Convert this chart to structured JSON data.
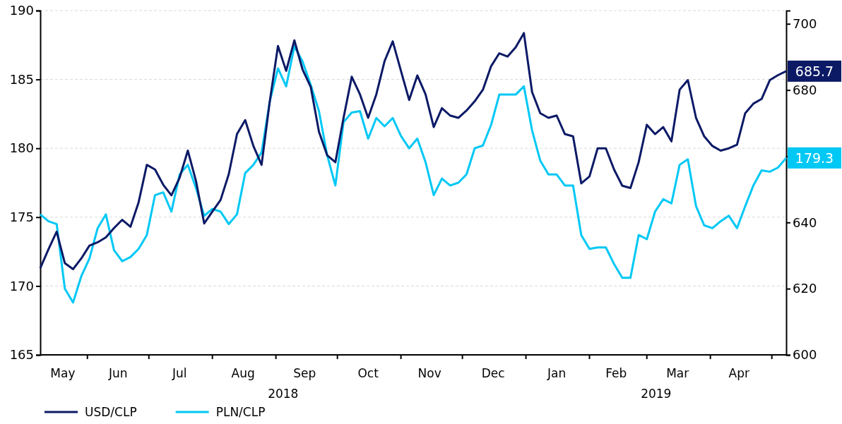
{
  "chart_data": {
    "type": "line",
    "x": [
      "2018-05-09",
      "2018-05-13",
      "2018-05-17",
      "2018-05-21",
      "2018-05-25",
      "2018-05-29",
      "2018-06-02",
      "2018-06-06",
      "2018-06-10",
      "2018-06-14",
      "2018-06-18",
      "2018-06-22",
      "2018-06-26",
      "2018-06-30",
      "2018-07-04",
      "2018-07-08",
      "2018-07-12",
      "2018-07-16",
      "2018-07-20",
      "2018-07-24",
      "2018-07-28",
      "2018-08-01",
      "2018-08-05",
      "2018-08-09",
      "2018-08-13",
      "2018-08-17",
      "2018-08-21",
      "2018-08-25",
      "2018-08-29",
      "2018-09-02",
      "2018-09-06",
      "2018-09-10",
      "2018-09-14",
      "2018-09-18",
      "2018-09-22",
      "2018-09-26",
      "2018-09-30",
      "2018-10-04",
      "2018-10-08",
      "2018-10-12",
      "2018-10-16",
      "2018-10-20",
      "2018-10-24",
      "2018-10-28",
      "2018-11-01",
      "2018-11-05",
      "2018-11-09",
      "2018-11-13",
      "2018-11-17",
      "2018-11-21",
      "2018-11-25",
      "2018-11-29",
      "2018-12-03",
      "2018-12-07",
      "2018-12-11",
      "2018-12-15",
      "2018-12-19",
      "2018-12-23",
      "2018-12-27",
      "2018-12-31",
      "2019-01-04",
      "2019-01-08",
      "2019-01-12",
      "2019-01-16",
      "2019-01-20",
      "2019-01-24",
      "2019-01-28",
      "2019-02-01",
      "2019-02-05",
      "2019-02-09",
      "2019-02-13",
      "2019-02-17",
      "2019-02-21",
      "2019-02-25",
      "2019-03-01",
      "2019-03-05",
      "2019-03-09",
      "2019-03-13",
      "2019-03-17",
      "2019-03-21",
      "2019-03-25",
      "2019-03-29",
      "2019-04-02",
      "2019-04-06",
      "2019-04-10",
      "2019-04-14",
      "2019-04-18",
      "2019-04-22",
      "2019-04-26",
      "2019-04-30",
      "2019-05-04",
      "2019-05-08"
    ],
    "series": [
      {
        "name": "USD/CLP",
        "color": "#0c1a66",
        "axis": "y2",
        "values": [
          626.2,
          631.9,
          637.2,
          627.7,
          625.9,
          629.1,
          633.0,
          634.0,
          635.5,
          638.3,
          640.8,
          638.7,
          646.1,
          657.4,
          656.0,
          651.4,
          648.2,
          653.5,
          661.7,
          652.5,
          639.7,
          643.3,
          646.8,
          654.6,
          666.7,
          670.9,
          663.1,
          657.4,
          676.6,
          693.3,
          685.8,
          695.0,
          686.2,
          680.9,
          667.4,
          660.3,
          658.2,
          671.6,
          684.0,
          678.7,
          671.6,
          678.7,
          688.7,
          694.7,
          685.8,
          677.0,
          684.4,
          678.7,
          668.8,
          674.5,
          672.3,
          671.6,
          673.8,
          676.6,
          680.1,
          687.2,
          691.1,
          690.1,
          692.9,
          697.2,
          679.4,
          673.0,
          671.6,
          672.3,
          666.7,
          666.0,
          651.8,
          653.9,
          662.4,
          662.4,
          656.0,
          651.1,
          650.4,
          658.2,
          669.5,
          666.7,
          668.8,
          664.5,
          680.1,
          683.0,
          671.6,
          666.0,
          663.1,
          661.7,
          662.4,
          663.5,
          673.0,
          675.9,
          677.3,
          683.0,
          684.5,
          685.7
        ],
        "value_labels": [
          null,
          null,
          null,
          null,
          null,
          null,
          null,
          null,
          null,
          null,
          null,
          null,
          null,
          null,
          null,
          null,
          null,
          null,
          null,
          null,
          null,
          null,
          null,
          null,
          null,
          null,
          null,
          null,
          null,
          null,
          null,
          null,
          null,
          null,
          null,
          null,
          null,
          null,
          null,
          null,
          null,
          null,
          null,
          null,
          null,
          null,
          null,
          null,
          null,
          null,
          null,
          null,
          null,
          null,
          null,
          null,
          null,
          null,
          null,
          null,
          null,
          null,
          null,
          null,
          null,
          null,
          null,
          null,
          null,
          null,
          null,
          null,
          null,
          null,
          null,
          null,
          null,
          null,
          null,
          null,
          null,
          null,
          null,
          null,
          null,
          null,
          null,
          null,
          null,
          null,
          null,
          "685.7"
        ]
      },
      {
        "name": "PLN/CLP",
        "color": "#00c8f5",
        "values": [
          175.2,
          174.7,
          174.5,
          169.8,
          168.8,
          170.7,
          172.0,
          174.2,
          175.2,
          172.6,
          171.8,
          172.1,
          172.7,
          173.7,
          176.6,
          176.8,
          175.4,
          178.1,
          178.8,
          177.1,
          175.1,
          175.6,
          175.4,
          174.5,
          175.2,
          178.2,
          178.8,
          179.7,
          183.4,
          185.8,
          184.5,
          187.4,
          186.3,
          184.6,
          182.7,
          179.5,
          177.3,
          181.9,
          182.6,
          182.7,
          180.7,
          182.2,
          181.6,
          182.2,
          180.9,
          180.0,
          180.7,
          179.0,
          176.6,
          177.8,
          177.3,
          177.5,
          178.1,
          180.0,
          180.2,
          181.7,
          183.9,
          183.9,
          183.9,
          184.5,
          181.3,
          179.1,
          178.1,
          178.1,
          177.3,
          177.3,
          173.7,
          172.7,
          172.8,
          172.8,
          171.6,
          170.6,
          170.6,
          173.7,
          173.4,
          175.4,
          176.3,
          176.0,
          178.8,
          179.2,
          175.8,
          174.4,
          174.2,
          174.7,
          175.1,
          174.2,
          175.8,
          177.3,
          178.4,
          178.3,
          178.6,
          179.3
        ],
        "value_labels": [
          null,
          null,
          null,
          null,
          null,
          null,
          null,
          null,
          null,
          null,
          null,
          null,
          null,
          null,
          null,
          null,
          null,
          null,
          null,
          null,
          null,
          null,
          null,
          null,
          null,
          null,
          null,
          null,
          null,
          null,
          null,
          null,
          null,
          null,
          null,
          null,
          null,
          null,
          null,
          null,
          null,
          null,
          null,
          null,
          null,
          null,
          null,
          null,
          null,
          null,
          null,
          null,
          null,
          null,
          null,
          null,
          null,
          null,
          null,
          null,
          null,
          null,
          null,
          null,
          null,
          null,
          null,
          null,
          null,
          null,
          null,
          null,
          null,
          null,
          null,
          null,
          null,
          null,
          null,
          null,
          null,
          null,
          null,
          null,
          null,
          null,
          null,
          null,
          null,
          null,
          null,
          "179.3"
        ]
      }
    ],
    "xlim": [
      "2018-05-09",
      "2019-05-08"
    ],
    "xticks": [
      {
        "value": "2018-06-01",
        "label": null
      },
      {
        "value": "2018-07-01",
        "label": null
      },
      {
        "value": "2018-08-01",
        "label": null
      },
      {
        "value": "2018-09-01",
        "label": null
      },
      {
        "value": "2018-10-01",
        "label": null
      },
      {
        "value": "2018-11-01",
        "label": null
      },
      {
        "value": "2018-12-01",
        "label": null
      },
      {
        "value": "2019-01-01",
        "label": null
      },
      {
        "value": "2019-02-01",
        "label": null
      },
      {
        "value": "2019-03-01",
        "label": null
      },
      {
        "value": "2019-04-01",
        "label": null
      },
      {
        "value": "2019-05-01",
        "label": null
      },
      {
        "value": "2018-05-20",
        "label": "May"
      },
      {
        "value": "2018-06-16",
        "label": "Jun"
      },
      {
        "value": "2018-07-16",
        "label": "Jul"
      },
      {
        "value": "2018-08-16",
        "label": "Aug"
      },
      {
        "value": "2018-09-15",
        "label": "Sep"
      },
      {
        "value": "2018-10-16",
        "label": "Oct"
      },
      {
        "value": "2018-11-15",
        "label": "Nov"
      },
      {
        "value": "2018-12-16",
        "label": "Dec"
      },
      {
        "value": "2019-01-16",
        "label": "Jan"
      },
      {
        "value": "2019-02-14",
        "label": "Feb"
      },
      {
        "value": "2019-03-16",
        "label": "Mar"
      },
      {
        "value": "2019-04-15",
        "label": "Apr"
      }
    ],
    "ylim": [
      165,
      190
    ],
    "yticks": [
      165,
      170,
      175,
      180,
      185,
      190
    ],
    "y2lim": [
      600,
      704
    ],
    "y2ticks": [
      600,
      620,
      640,
      {
        "value": 660,
        "label": null
      },
      680,
      700
    ],
    "annotations": [
      "2018",
      "2019"
    ],
    "grid": "y",
    "legend": "bottom left",
    "line_style": "solid",
    "marker": "none"
  }
}
